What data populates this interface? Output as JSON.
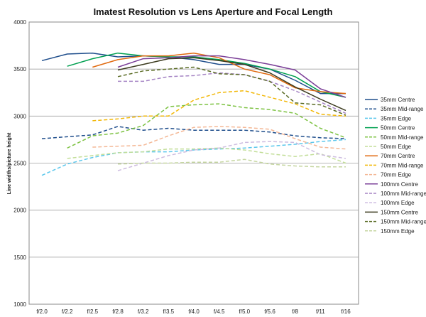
{
  "chart_data": {
    "type": "line",
    "title": "Imatest Resolution vs Lens Aperture and Focal Length",
    "xlabel": "",
    "ylabel": "Line widths/picture height",
    "ylim": [
      1000,
      4000
    ],
    "yticks": [
      1000,
      1500,
      2000,
      2500,
      3000,
      3500,
      4000
    ],
    "grid": "horizontal",
    "legend_position": "right",
    "categories": [
      "f/2.0",
      "f/2.2",
      "f/2.5",
      "f/2.8",
      "f/3.2",
      "f/3.5",
      "f/4.0",
      "f/4.5",
      "f/5.0",
      "f/5.6",
      "f/8",
      "f/11",
      "f/16"
    ],
    "series": [
      {
        "name": "35mm Centre",
        "color": "#1F4E8C",
        "dash": "solid",
        "values": [
          3590,
          3660,
          3670,
          3630,
          3640,
          3630,
          3600,
          3550,
          3550,
          3500,
          3380,
          3240,
          3240
        ]
      },
      {
        "name": "35mm Mid-range",
        "color": "#1F4E8C",
        "dash": "dash",
        "values": [
          2760,
          2780,
          2800,
          2890,
          2850,
          2870,
          2850,
          2850,
          2850,
          2830,
          2790,
          2770,
          2760
        ]
      },
      {
        "name": "35mm Edge",
        "color": "#5BC7EC",
        "dash": "dash",
        "values": [
          2370,
          2490,
          2560,
          2610,
          2620,
          2620,
          2640,
          2650,
          2660,
          2680,
          2700,
          2730,
          2750
        ]
      },
      {
        "name": "50mm Centre",
        "color": "#00A050",
        "dash": "solid",
        "values": [
          null,
          3530,
          3610,
          3670,
          3640,
          3630,
          3630,
          3600,
          3560,
          3500,
          3420,
          3260,
          3200
        ]
      },
      {
        "name": "50mm Mid-range",
        "color": "#7DC242",
        "dash": "dash",
        "values": [
          null,
          2660,
          2790,
          2820,
          2900,
          3100,
          3120,
          3130,
          3090,
          3070,
          3030,
          2870,
          2770
        ]
      },
      {
        "name": "50mm Edge",
        "color": "#C3DE99",
        "dash": "dash",
        "values": [
          null,
          2550,
          2580,
          2610,
          2620,
          2650,
          2650,
          2660,
          2640,
          2600,
          2570,
          2600,
          2500
        ]
      },
      {
        "name": "70mm Centre",
        "color": "#E06A10",
        "dash": "solid",
        "values": [
          null,
          null,
          3520,
          3600,
          3640,
          3640,
          3670,
          3620,
          3500,
          3440,
          3300,
          3260,
          3240
        ]
      },
      {
        "name": "70mm Mid-range",
        "color": "#F2B705",
        "dash": "dash",
        "values": [
          null,
          null,
          2950,
          2970,
          3000,
          3000,
          3170,
          3250,
          3270,
          3200,
          3130,
          3020,
          3000
        ]
      },
      {
        "name": "70mm Edge",
        "color": "#F4B896",
        "dash": "dash",
        "values": [
          null,
          null,
          2670,
          2680,
          2690,
          2790,
          2880,
          2890,
          2880,
          2860,
          2760,
          2670,
          2650
        ]
      },
      {
        "name": "100mm Centre",
        "color": "#7B3F98",
        "dash": "solid",
        "values": [
          null,
          null,
          null,
          3520,
          3610,
          3620,
          3640,
          3640,
          3600,
          3550,
          3490,
          3290,
          3200
        ]
      },
      {
        "name": "100mm Mid-range",
        "color": "#A584C4",
        "dash": "dash",
        "values": [
          null,
          null,
          null,
          3370,
          3370,
          3420,
          3430,
          3460,
          3440,
          3370,
          3270,
          3150,
          3030
        ]
      },
      {
        "name": "100mm Edge",
        "color": "#CDBCE0",
        "dash": "dash",
        "values": [
          null,
          null,
          null,
          2420,
          2500,
          2580,
          2640,
          2660,
          2720,
          2730,
          2720,
          2590,
          2550
        ]
      },
      {
        "name": "150mm Centre",
        "color": "#3B3A1E",
        "dash": "solid",
        "values": [
          null,
          null,
          null,
          3490,
          3550,
          3610,
          3620,
          3590,
          3550,
          3460,
          3310,
          3180,
          3060
        ]
      },
      {
        "name": "150mm Mid-range",
        "color": "#5A6B24",
        "dash": "dash",
        "values": [
          null,
          null,
          null,
          3420,
          3480,
          3500,
          3520,
          3450,
          3440,
          3370,
          3140,
          3120,
          3010
        ]
      },
      {
        "name": "150mm Edge",
        "color": "#C5D6A0",
        "dash": "dash",
        "values": [
          null,
          null,
          null,
          2490,
          2500,
          2500,
          2510,
          2510,
          2540,
          2490,
          2470,
          2460,
          2460
        ]
      }
    ]
  }
}
